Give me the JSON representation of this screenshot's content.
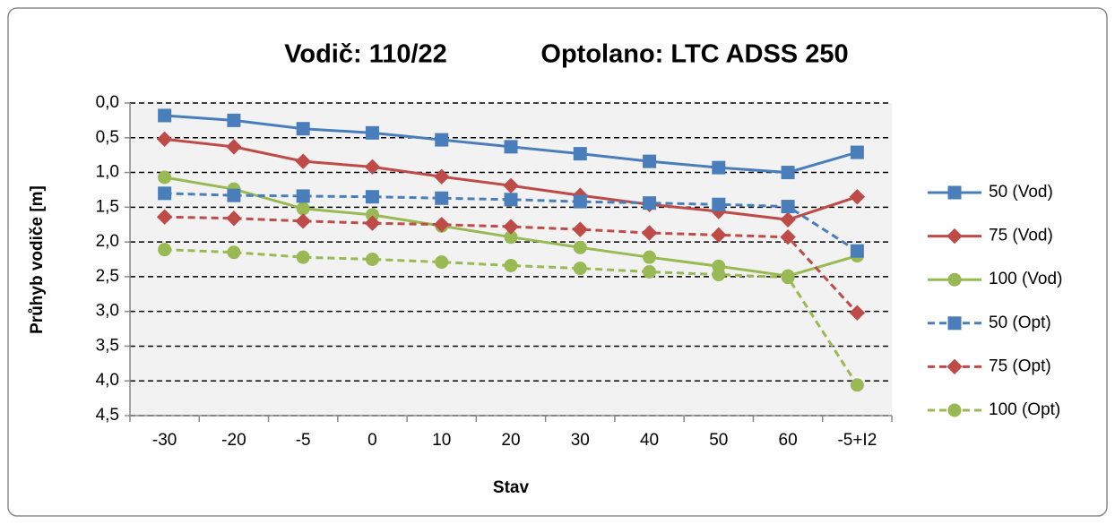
{
  "chart_data": {
    "type": "line",
    "title": [
      "Vodič: 110/22",
      "Optolano: LTC ADSS 250"
    ],
    "x_label": "Stav",
    "y_label": "Průhyb vodiče [m]",
    "categories": [
      "-30",
      "-20",
      "-5",
      "0",
      "10",
      "20",
      "30",
      "40",
      "50",
      "60",
      "-5+I2"
    ],
    "ylim": [
      0,
      4.5
    ],
    "y_reversed": true,
    "yticks": [
      {
        "value": 0,
        "label": "0,0"
      },
      {
        "value": 0.5,
        "label": "0,5"
      },
      {
        "value": 1,
        "label": "1,0"
      },
      {
        "value": 1.5,
        "label": "1,5"
      },
      {
        "value": 2,
        "label": "2,0"
      },
      {
        "value": 2.5,
        "label": "2,5"
      },
      {
        "value": 3,
        "label": "3,0"
      },
      {
        "value": 3.5,
        "label": "3,5"
      },
      {
        "value": 4,
        "label": "4,0"
      },
      {
        "value": 4.5,
        "label": "4,5"
      }
    ],
    "grid": true,
    "legend": "right",
    "series": [
      {
        "name": "50 (Vod)",
        "color": "#4a7ebb",
        "marker": "square",
        "style": "solid",
        "values": [
          0.18,
          0.25,
          0.37,
          0.43,
          0.53,
          0.63,
          0.73,
          0.84,
          0.93,
          1.0,
          0.71
        ]
      },
      {
        "name": "75 (Vod)",
        "color": "#be4b48",
        "marker": "diamond",
        "style": "solid",
        "values": [
          0.52,
          0.63,
          0.84,
          0.92,
          1.06,
          1.19,
          1.33,
          1.46,
          1.56,
          1.68,
          1.35
        ]
      },
      {
        "name": "100 (Vod)",
        "color": "#98b954",
        "marker": "circle",
        "style": "solid",
        "values": [
          1.07,
          1.24,
          1.52,
          1.61,
          1.77,
          1.93,
          2.08,
          2.22,
          2.35,
          2.49,
          2.2
        ]
      },
      {
        "name": "50 (Opt)",
        "color": "#4a7ebb",
        "marker": "square",
        "style": "dashed",
        "values": [
          1.3,
          1.33,
          1.34,
          1.35,
          1.37,
          1.39,
          1.42,
          1.44,
          1.46,
          1.49,
          2.13
        ]
      },
      {
        "name": "75 (Opt)",
        "color": "#be4b48",
        "marker": "diamond",
        "style": "dashed",
        "values": [
          1.64,
          1.66,
          1.7,
          1.73,
          1.75,
          1.78,
          1.82,
          1.87,
          1.9,
          1.93,
          3.02
        ]
      },
      {
        "name": "100 (Opt)",
        "color": "#98b954",
        "marker": "circle",
        "style": "dashed",
        "values": [
          2.11,
          2.15,
          2.22,
          2.25,
          2.29,
          2.34,
          2.38,
          2.43,
          2.47,
          2.51,
          4.06
        ]
      }
    ]
  }
}
